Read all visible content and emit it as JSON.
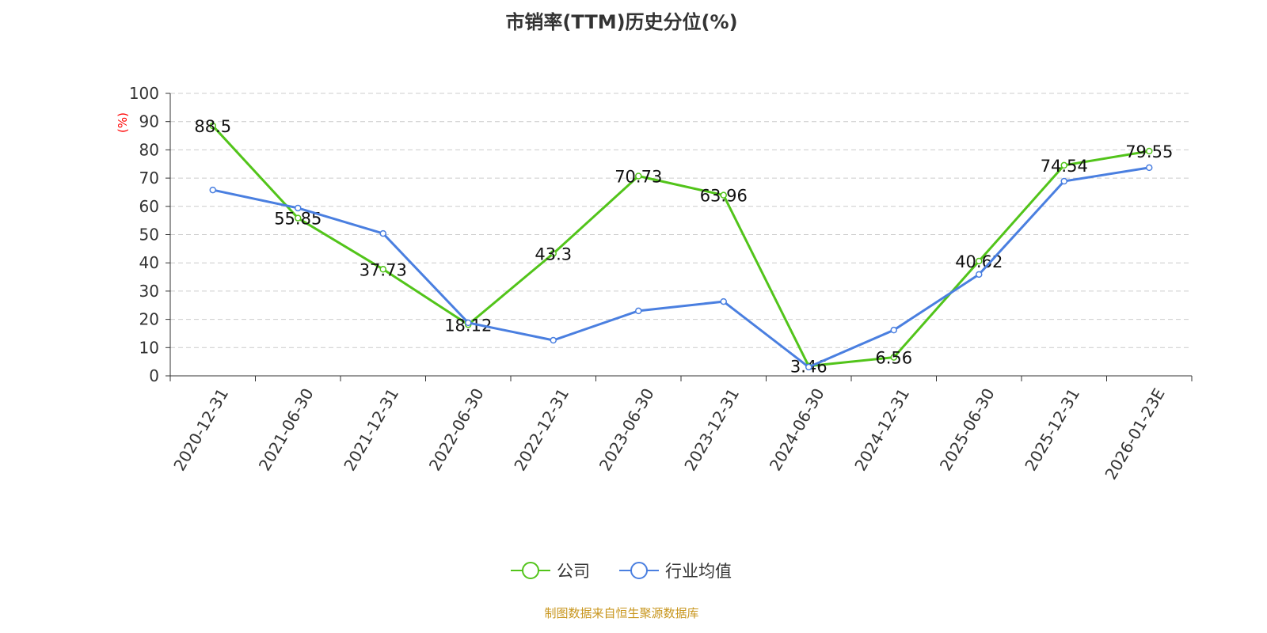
{
  "chart_data": {
    "type": "line",
    "title": "市销率(TTM)历史分位(%)",
    "ylabel": "(%)",
    "ylim": [
      0,
      100
    ],
    "yticks": [
      0,
      10,
      20,
      30,
      40,
      50,
      60,
      70,
      80,
      90,
      100
    ],
    "grid": true,
    "legend_position": "bottom",
    "categories": [
      "2020-12-31",
      "2021-06-30",
      "2021-12-31",
      "2022-06-30",
      "2022-12-31",
      "2023-06-30",
      "2023-12-31",
      "2024-06-30",
      "2024-12-31",
      "2025-06-30",
      "2025-12-31",
      "2026-01-23E"
    ],
    "series": [
      {
        "name": "公司",
        "color": "#52c41a",
        "values": [
          88.5,
          55.85,
          37.73,
          18.12,
          43.3,
          70.73,
          63.96,
          3.46,
          6.56,
          40.62,
          74.54,
          79.55
        ],
        "labels": true
      },
      {
        "name": "行业均值",
        "color": "#4a7fe0",
        "values": [
          65.8,
          59.4,
          50.4,
          18.8,
          12.6,
          23.0,
          26.3,
          3.1,
          16.2,
          35.9,
          68.9,
          73.7
        ],
        "labels": false
      }
    ]
  },
  "source": "制图数据来自恒生聚源数据库"
}
